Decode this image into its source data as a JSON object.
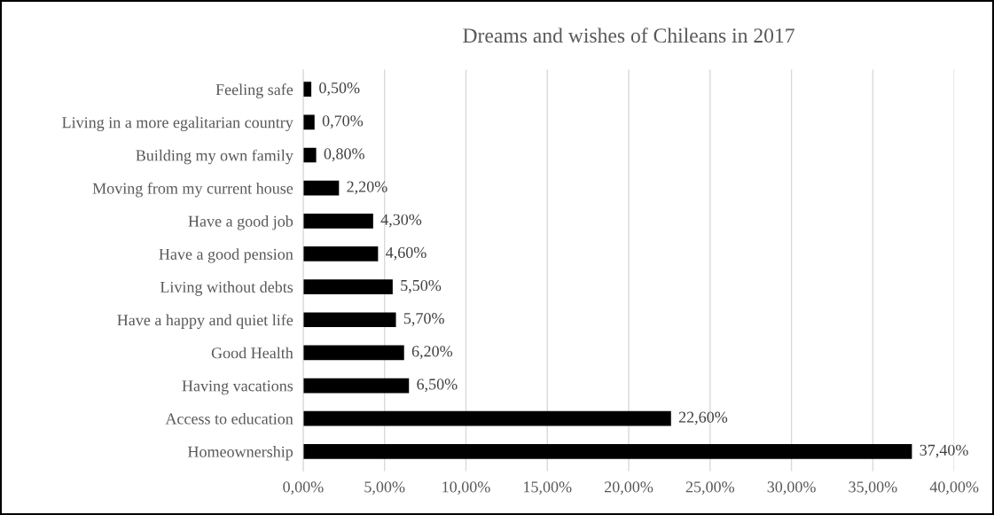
{
  "chart_data": {
    "type": "bar",
    "orientation": "horizontal",
    "title": "Dreams and wishes of Chileans in 2017",
    "categories": [
      "Feeling safe",
      "Living in a more egalitarian country",
      "Building my own family",
      "Moving from my current house",
      "Have a good job",
      "Have a good pension",
      "Living without debts",
      "Have a happy and quiet life",
      "Good Health",
      "Having vacations",
      "Access to education",
      "Homeownership"
    ],
    "values": [
      0.5,
      0.7,
      0.8,
      2.2,
      4.3,
      4.6,
      5.5,
      5.7,
      6.2,
      6.5,
      22.6,
      37.4
    ],
    "value_labels": [
      "0,50%",
      "0,70%",
      "0,80%",
      "2,20%",
      "4,30%",
      "4,60%",
      "5,50%",
      "5,70%",
      "6,20%",
      "6,50%",
      "22,60%",
      "37,40%"
    ],
    "color": "#000000",
    "xlim": [
      0,
      40
    ],
    "xticks": [
      {
        "value": 0,
        "label": "0,00%"
      },
      {
        "value": 5,
        "label": "5,00%"
      },
      {
        "value": 10,
        "label": "10,00%"
      },
      {
        "value": 15,
        "label": "15,00%"
      },
      {
        "value": 20,
        "label": "20,00%"
      },
      {
        "value": 25,
        "label": "25,00%"
      },
      {
        "value": 30,
        "label": "30,00%"
      },
      {
        "value": 35,
        "label": "35,00%"
      },
      {
        "value": 40,
        "label": "40,00%"
      }
    ],
    "grid": "x"
  }
}
